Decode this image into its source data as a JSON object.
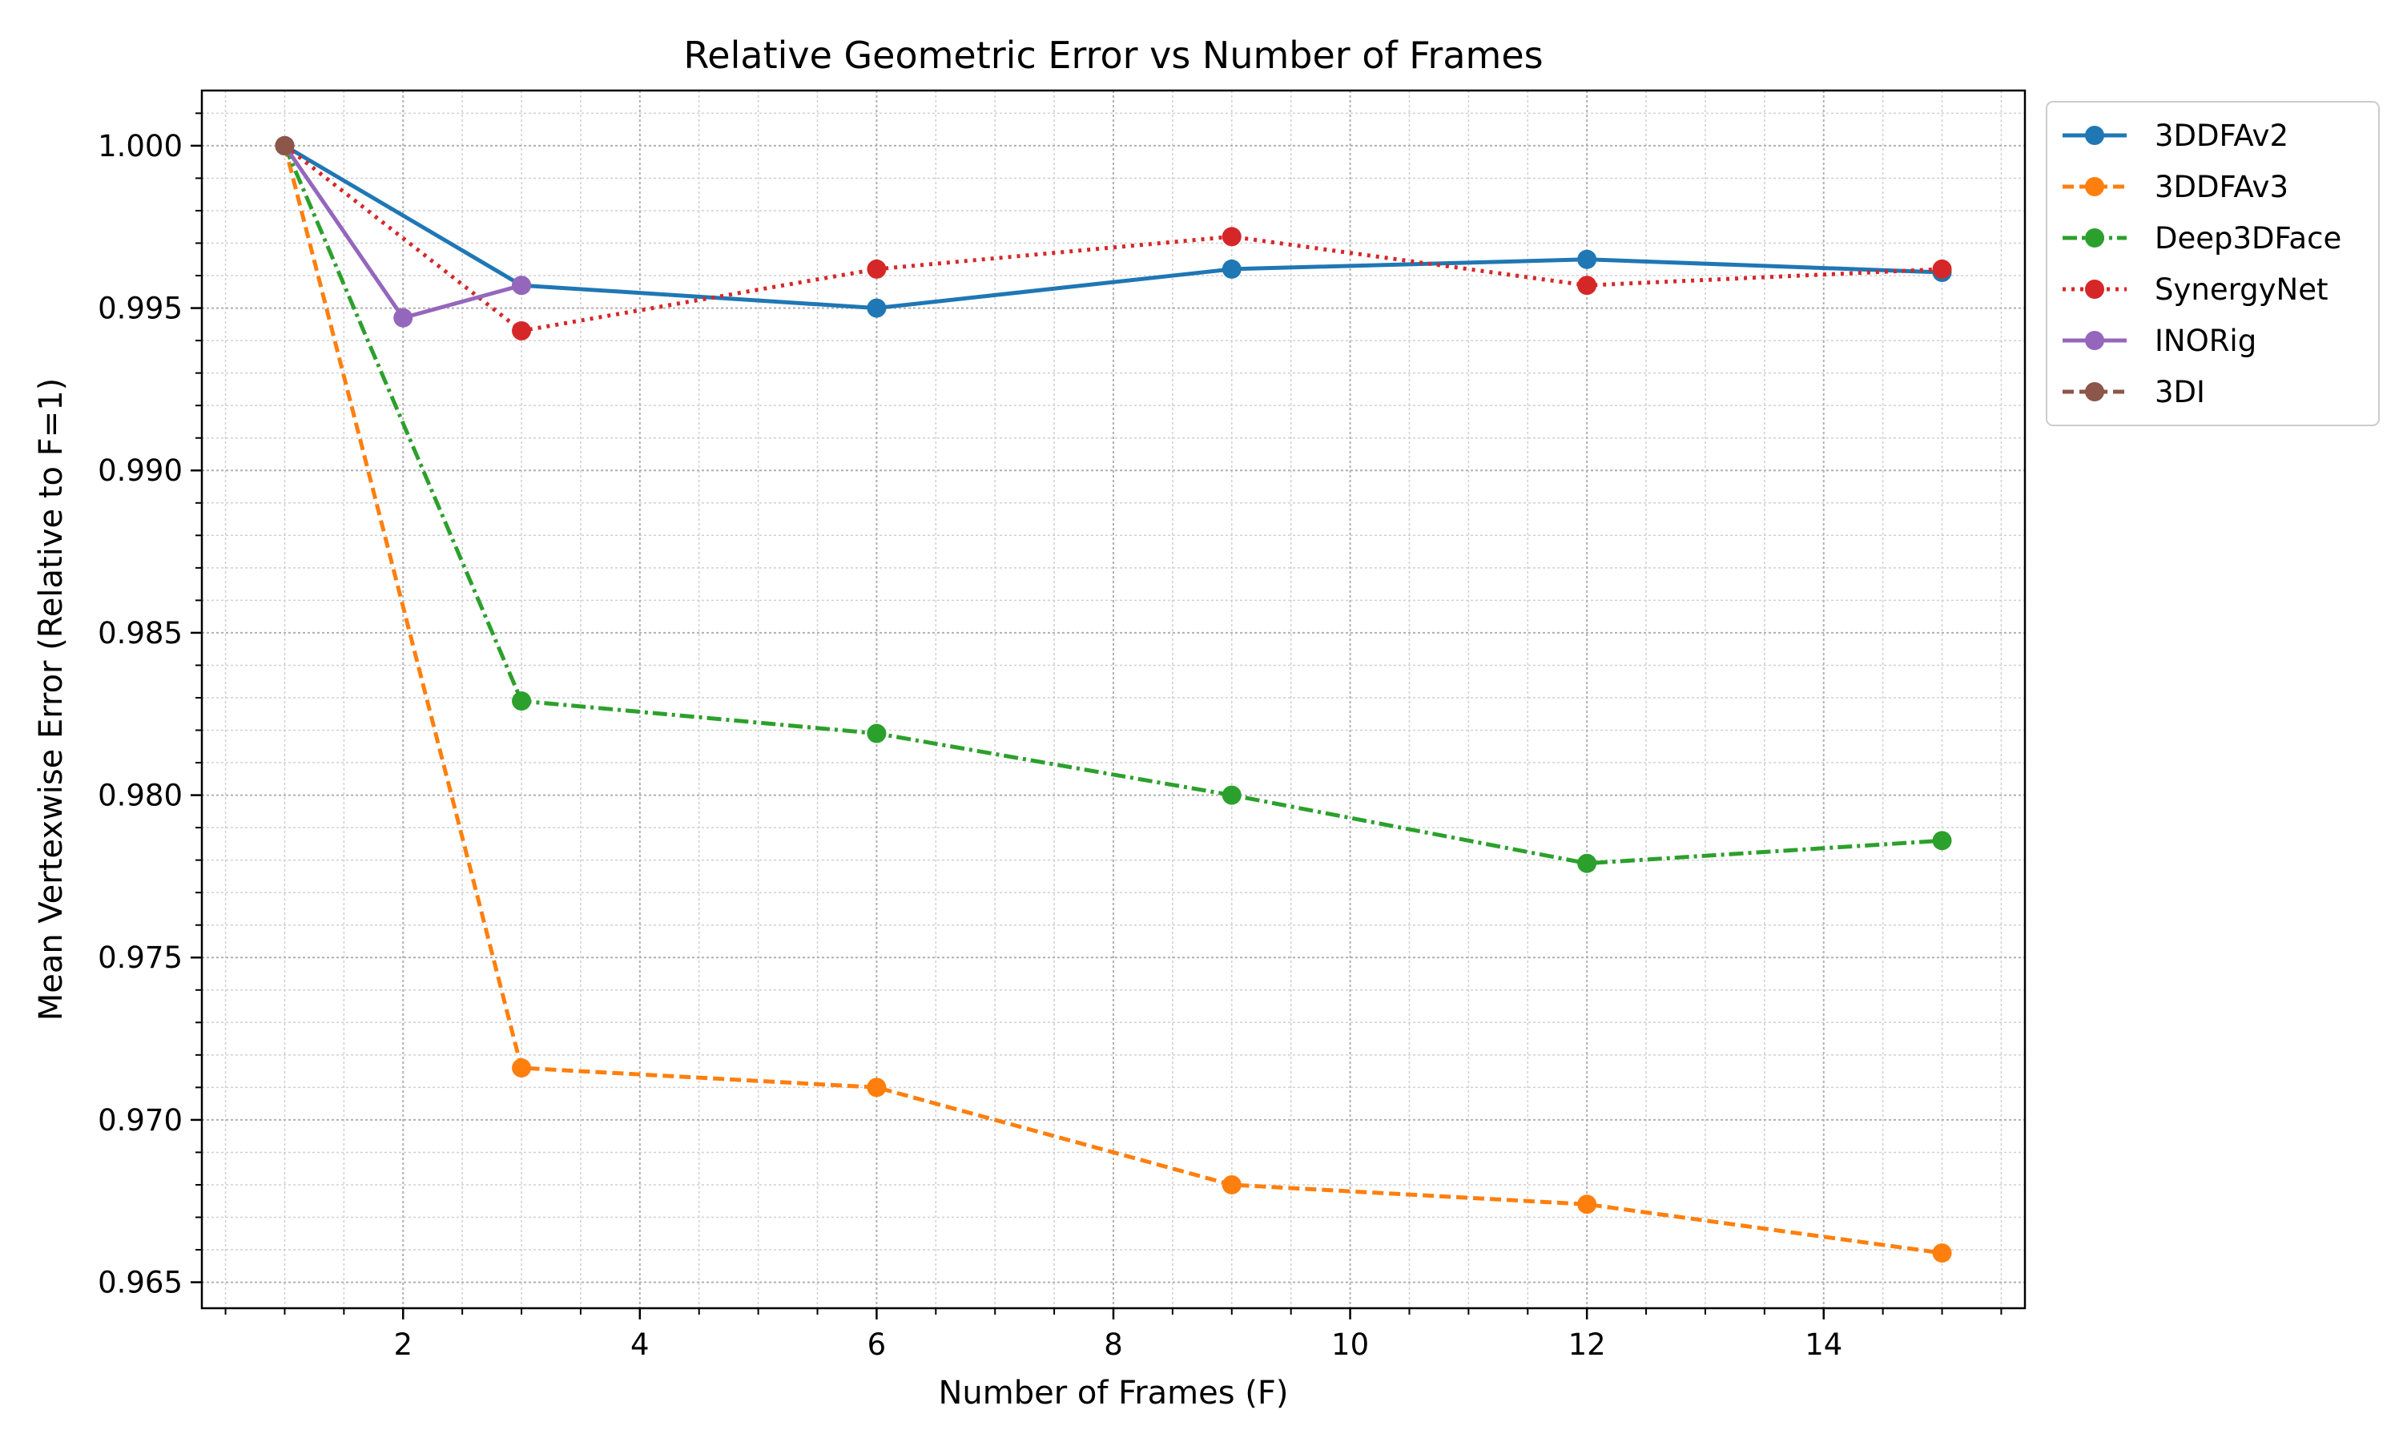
{
  "chart_data": {
    "type": "line",
    "title": "Relative Geometric Error vs Number of Frames",
    "xlabel": "Number of Frames (F)",
    "ylabel": "Mean Vertexwise Error (Relative to F=1)",
    "xlim": [
      0.3,
      15.7
    ],
    "ylim": [
      0.9642,
      1.0017
    ],
    "xticks": [
      2,
      4,
      6,
      8,
      10,
      12,
      14
    ],
    "yticks": [
      0.965,
      0.97,
      0.975,
      0.98,
      0.985,
      0.99,
      0.995,
      1.0
    ],
    "xtick_labels": [
      "2",
      "4",
      "6",
      "8",
      "10",
      "12",
      "14"
    ],
    "ytick_labels": [
      "0.965",
      "0.970",
      "0.975",
      "0.980",
      "0.985",
      "0.990",
      "0.995",
      "1.000"
    ],
    "grid": true,
    "minor_grid": true,
    "legend_position": "outside-top-right",
    "series": [
      {
        "name": "3DDFAv2",
        "color": "#1f77b4",
        "linestyle": "solid",
        "marker": "circle",
        "x": [
          1,
          3,
          6,
          9,
          12,
          15
        ],
        "y": [
          1.0,
          0.9957,
          0.995,
          0.9962,
          0.9965,
          0.9961
        ]
      },
      {
        "name": "3DDFAv3",
        "color": "#ff7f0e",
        "linestyle": "dashed",
        "marker": "circle",
        "x": [
          1,
          3,
          6,
          9,
          12,
          15
        ],
        "y": [
          1.0,
          0.9716,
          0.971,
          0.968,
          0.9674,
          0.9659
        ]
      },
      {
        "name": "Deep3DFace",
        "color": "#2ca02c",
        "linestyle": "dashdot",
        "marker": "circle",
        "x": [
          1,
          3,
          6,
          9,
          12,
          15
        ],
        "y": [
          1.0,
          0.9829,
          0.9819,
          0.98,
          0.9779,
          0.9786
        ]
      },
      {
        "name": "SynergyNet",
        "color": "#d62728",
        "linestyle": "dotted",
        "marker": "circle",
        "x": [
          1,
          3,
          6,
          9,
          12,
          15
        ],
        "y": [
          1.0,
          0.9943,
          0.9962,
          0.9972,
          0.9957,
          0.9962
        ]
      },
      {
        "name": "INORig",
        "color": "#9467bd",
        "linestyle": "solid",
        "marker": "circle",
        "x": [
          1,
          2,
          3
        ],
        "y": [
          1.0,
          0.9947,
          0.9957
        ]
      },
      {
        "name": "3DI",
        "color": "#8c564b",
        "linestyle": "dashed",
        "marker": "circle",
        "x": [
          1
        ],
        "y": [
          1.0
        ]
      }
    ]
  }
}
